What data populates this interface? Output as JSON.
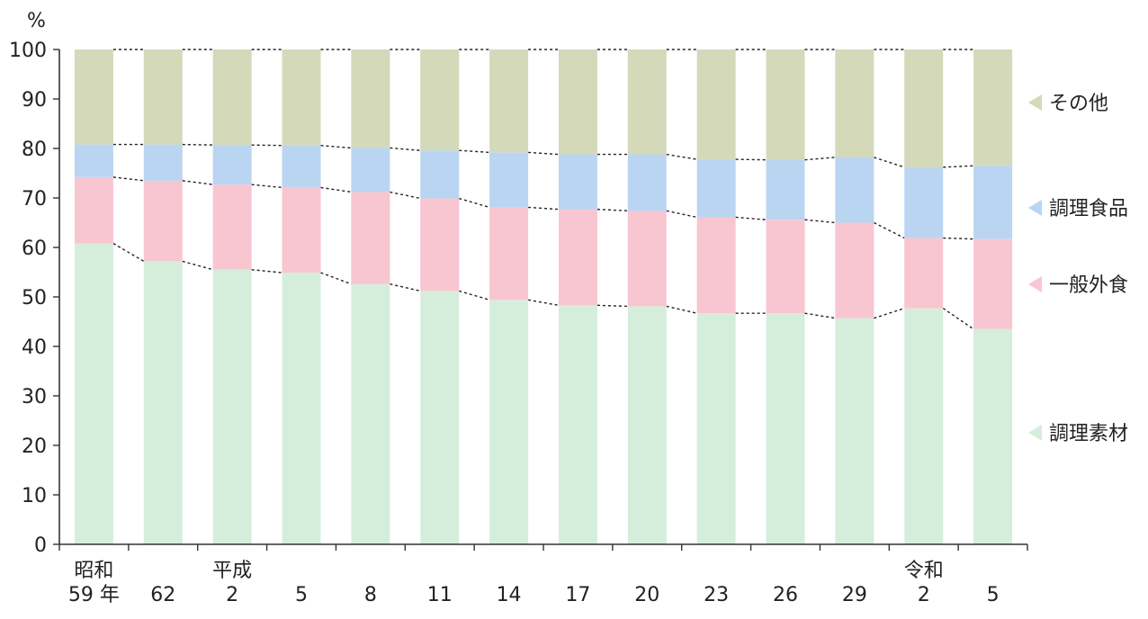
{
  "chart_data": {
    "type": "bar",
    "stacked": true,
    "normalized_percent": true,
    "ylabel": "%",
    "ylim": [
      0,
      100
    ],
    "yticks": [
      0,
      10,
      20,
      30,
      40,
      50,
      60,
      70,
      80,
      90,
      100
    ],
    "categories": [
      "昭和59年",
      "62",
      "平成2",
      "5",
      "8",
      "11",
      "14",
      "17",
      "20",
      "23",
      "26",
      "29",
      "令和2",
      "5"
    ],
    "x_labels": [
      {
        "era": "昭和",
        "year": "59 年"
      },
      {
        "era": "",
        "year": "62"
      },
      {
        "era": "平成",
        "year": "2"
      },
      {
        "era": "",
        "year": "5"
      },
      {
        "era": "",
        "year": "8"
      },
      {
        "era": "",
        "year": "11"
      },
      {
        "era": "",
        "year": "14"
      },
      {
        "era": "",
        "year": "17"
      },
      {
        "era": "",
        "year": "20"
      },
      {
        "era": "",
        "year": "23"
      },
      {
        "era": "",
        "year": "26"
      },
      {
        "era": "",
        "year": "29"
      },
      {
        "era": "令和",
        "year": "2"
      },
      {
        "era": "",
        "year": "5"
      }
    ],
    "series": [
      {
        "name": "調理素材",
        "color": "#d5eedc",
        "values": [
          60.8,
          57.2,
          55.5,
          54.9,
          52.6,
          51.2,
          49.4,
          48.3,
          48.1,
          46.7,
          46.7,
          45.7,
          47.7,
          43.5
        ]
      },
      {
        "name": "一般外食",
        "color": "#f8c6d1",
        "values": [
          13.4,
          16.3,
          17.2,
          17.2,
          18.6,
          18.7,
          18.7,
          19.4,
          19.3,
          19.4,
          18.9,
          19.3,
          14.2,
          18.2
        ]
      },
      {
        "name": "調理食品",
        "color": "#bad5f1",
        "values": [
          6.6,
          7.3,
          8.0,
          8.5,
          8.9,
          9.7,
          11.1,
          11.1,
          11.4,
          11.7,
          12.1,
          13.2,
          14.3,
          14.8
        ]
      },
      {
        "name": "その他",
        "color": "#d4d9b9",
        "values": [
          19.2,
          19.2,
          19.3,
          19.4,
          19.9,
          20.4,
          20.8,
          21.2,
          21.2,
          22.2,
          22.3,
          21.8,
          23.8,
          23.5
        ]
      }
    ],
    "legend_placement": "right",
    "connector_lines": "dashed",
    "grid": false
  }
}
